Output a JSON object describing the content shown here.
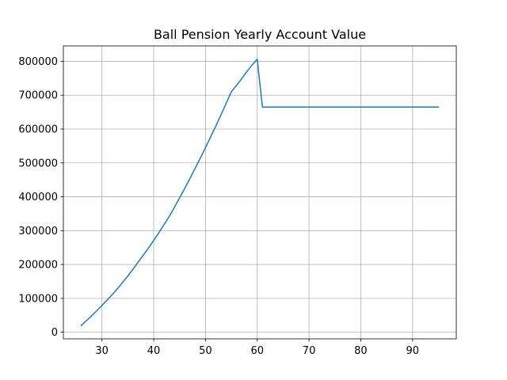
{
  "chart_data": {
    "type": "line",
    "title": "Ball Pension Yearly Account Value",
    "xlabel": "",
    "ylabel": "",
    "xlim": [
      22.55,
      98.45
    ],
    "ylim": [
      -19500,
      845500
    ],
    "grid": true,
    "x_ticks": [
      30,
      40,
      50,
      60,
      70,
      80,
      90
    ],
    "x_tick_labels": [
      "30",
      "40",
      "50",
      "60",
      "70",
      "80",
      "90"
    ],
    "y_ticks": [
      0,
      100000,
      200000,
      300000,
      400000,
      500000,
      600000,
      700000,
      800000
    ],
    "y_tick_labels": [
      "0",
      "100000",
      "200000",
      "300000",
      "400000",
      "500000",
      "600000",
      "700000",
      "800000"
    ],
    "colors": {
      "line": "#1f77b4",
      "grid": "#b0b0b0",
      "axes": "#000000"
    },
    "series": [
      {
        "x": [
          26,
          27,
          28,
          29,
          30,
          31,
          32,
          33,
          34,
          35,
          36,
          37,
          38,
          39,
          40,
          41,
          42,
          43,
          44,
          45,
          46,
          47,
          48,
          49,
          50,
          51,
          52,
          53,
          54,
          55,
          56,
          57,
          58,
          59,
          60,
          61,
          62,
          63,
          64,
          65,
          66,
          67,
          68,
          69,
          70,
          71,
          72,
          73,
          74,
          75,
          76,
          77,
          78,
          79,
          80,
          81,
          82,
          83,
          84,
          85,
          86,
          87,
          88,
          89,
          90,
          91,
          92,
          93,
          94,
          95
        ],
        "y": [
          20000,
          34000,
          48500,
          63500,
          79000,
          95000,
          111500,
          128500,
          147000,
          166000,
          186000,
          207000,
          228000,
          249000,
          271000,
          294000,
          318000,
          342000,
          369000,
          397000,
          425000,
          454000,
          484000,
          514000,
          545000,
          577000,
          609000,
          642000,
          676000,
          710000,
          729000,
          749000,
          770000,
          789000,
          806000,
          665000,
          665000,
          665000,
          665000,
          665000,
          665000,
          665000,
          665000,
          665000,
          665000,
          665000,
          665000,
          665000,
          665000,
          665000,
          665000,
          665000,
          665000,
          665000,
          665000,
          665000,
          665000,
          665000,
          665000,
          665000,
          665000,
          665000,
          665000,
          665000,
          665000,
          665000,
          665000,
          665000,
          665000,
          665000
        ]
      }
    ]
  }
}
